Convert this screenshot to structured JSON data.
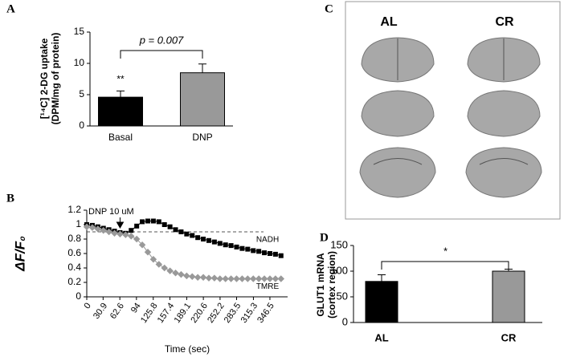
{
  "chart_data": [
    {
      "type": "bar",
      "panel": "A",
      "ylabel": [
        "[¹⁴C] 2-DG uptake",
        "(DPM/mg of protein)"
      ],
      "categories": [
        "Basal",
        "DNP"
      ],
      "values": [
        4.6,
        8.5
      ],
      "errors": [
        1.0,
        1.4
      ],
      "colors": [
        "#000000",
        "#999999"
      ],
      "ylim": [
        0,
        15
      ],
      "yticks": [
        0,
        5,
        10,
        15
      ],
      "bracket_label": "p = 0.007",
      "marker_label": "**"
    },
    {
      "type": "line",
      "panel": "B",
      "ylabel": "ΔF/F₀",
      "xlabel": "Time (sec)",
      "x": [
        0,
        10.5,
        21,
        31.5,
        42,
        52.5,
        63,
        73.5,
        84,
        94.5,
        105,
        115.5,
        126,
        136.5,
        147,
        157.5,
        168,
        178.5,
        189,
        199.5,
        210,
        220.5,
        231,
        241.5,
        252,
        262.5,
        273,
        283.5,
        294,
        304.5,
        315,
        325.5,
        336,
        346.5,
        357,
        367.5
      ],
      "series": [
        {
          "name": "NADH",
          "color": "#000000",
          "marker": "square",
          "values": [
            1.0,
            0.99,
            0.97,
            0.95,
            0.93,
            0.91,
            0.89,
            0.88,
            0.92,
            0.98,
            1.04,
            1.05,
            1.05,
            1.04,
            1.0,
            0.97,
            0.93,
            0.9,
            0.87,
            0.85,
            0.82,
            0.8,
            0.78,
            0.76,
            0.74,
            0.72,
            0.71,
            0.69,
            0.67,
            0.66,
            0.64,
            0.63,
            0.61,
            0.6,
            0.59,
            0.57
          ]
        },
        {
          "name": "TMRE",
          "color": "#999999",
          "marker": "diamond",
          "values": [
            0.97,
            0.96,
            0.94,
            0.92,
            0.9,
            0.88,
            0.87,
            0.86,
            0.84,
            0.8,
            0.72,
            0.62,
            0.52,
            0.45,
            0.4,
            0.36,
            0.33,
            0.31,
            0.29,
            0.28,
            0.27,
            0.27,
            0.26,
            0.26,
            0.25,
            0.25,
            0.25,
            0.25,
            0.25,
            0.25,
            0.25,
            0.25,
            0.25,
            0.25,
            0.25,
            0.25
          ]
        }
      ],
      "xlim": [
        0,
        380
      ],
      "xticks": [
        0,
        30.9,
        62.6,
        94,
        125.8,
        157.4,
        189.1,
        220.6,
        252.2,
        283.5,
        315.3,
        346.5
      ],
      "ylim": [
        0,
        1.2
      ],
      "yticks": [
        0,
        0.2,
        0.4,
        0.6,
        0.8,
        1,
        1.2
      ],
      "reference_line": 0.9,
      "annotation": {
        "text": "DNP 10 uM",
        "x": 63
      }
    },
    {
      "type": "bar",
      "panel": "D",
      "ylabel": [
        "GLUT1 mRNA",
        "(cortex region)"
      ],
      "categories": [
        "AL",
        "CR"
      ],
      "values": [
        80,
        100
      ],
      "errors": [
        13,
        4
      ],
      "colors": [
        "#000000",
        "#999999"
      ],
      "ylim": [
        0,
        150
      ],
      "yticks": [
        0,
        50,
        100,
        150
      ],
      "bracket_label": "*"
    }
  ],
  "panel_c": {
    "label": "C",
    "columns": [
      "AL",
      "CR"
    ]
  }
}
